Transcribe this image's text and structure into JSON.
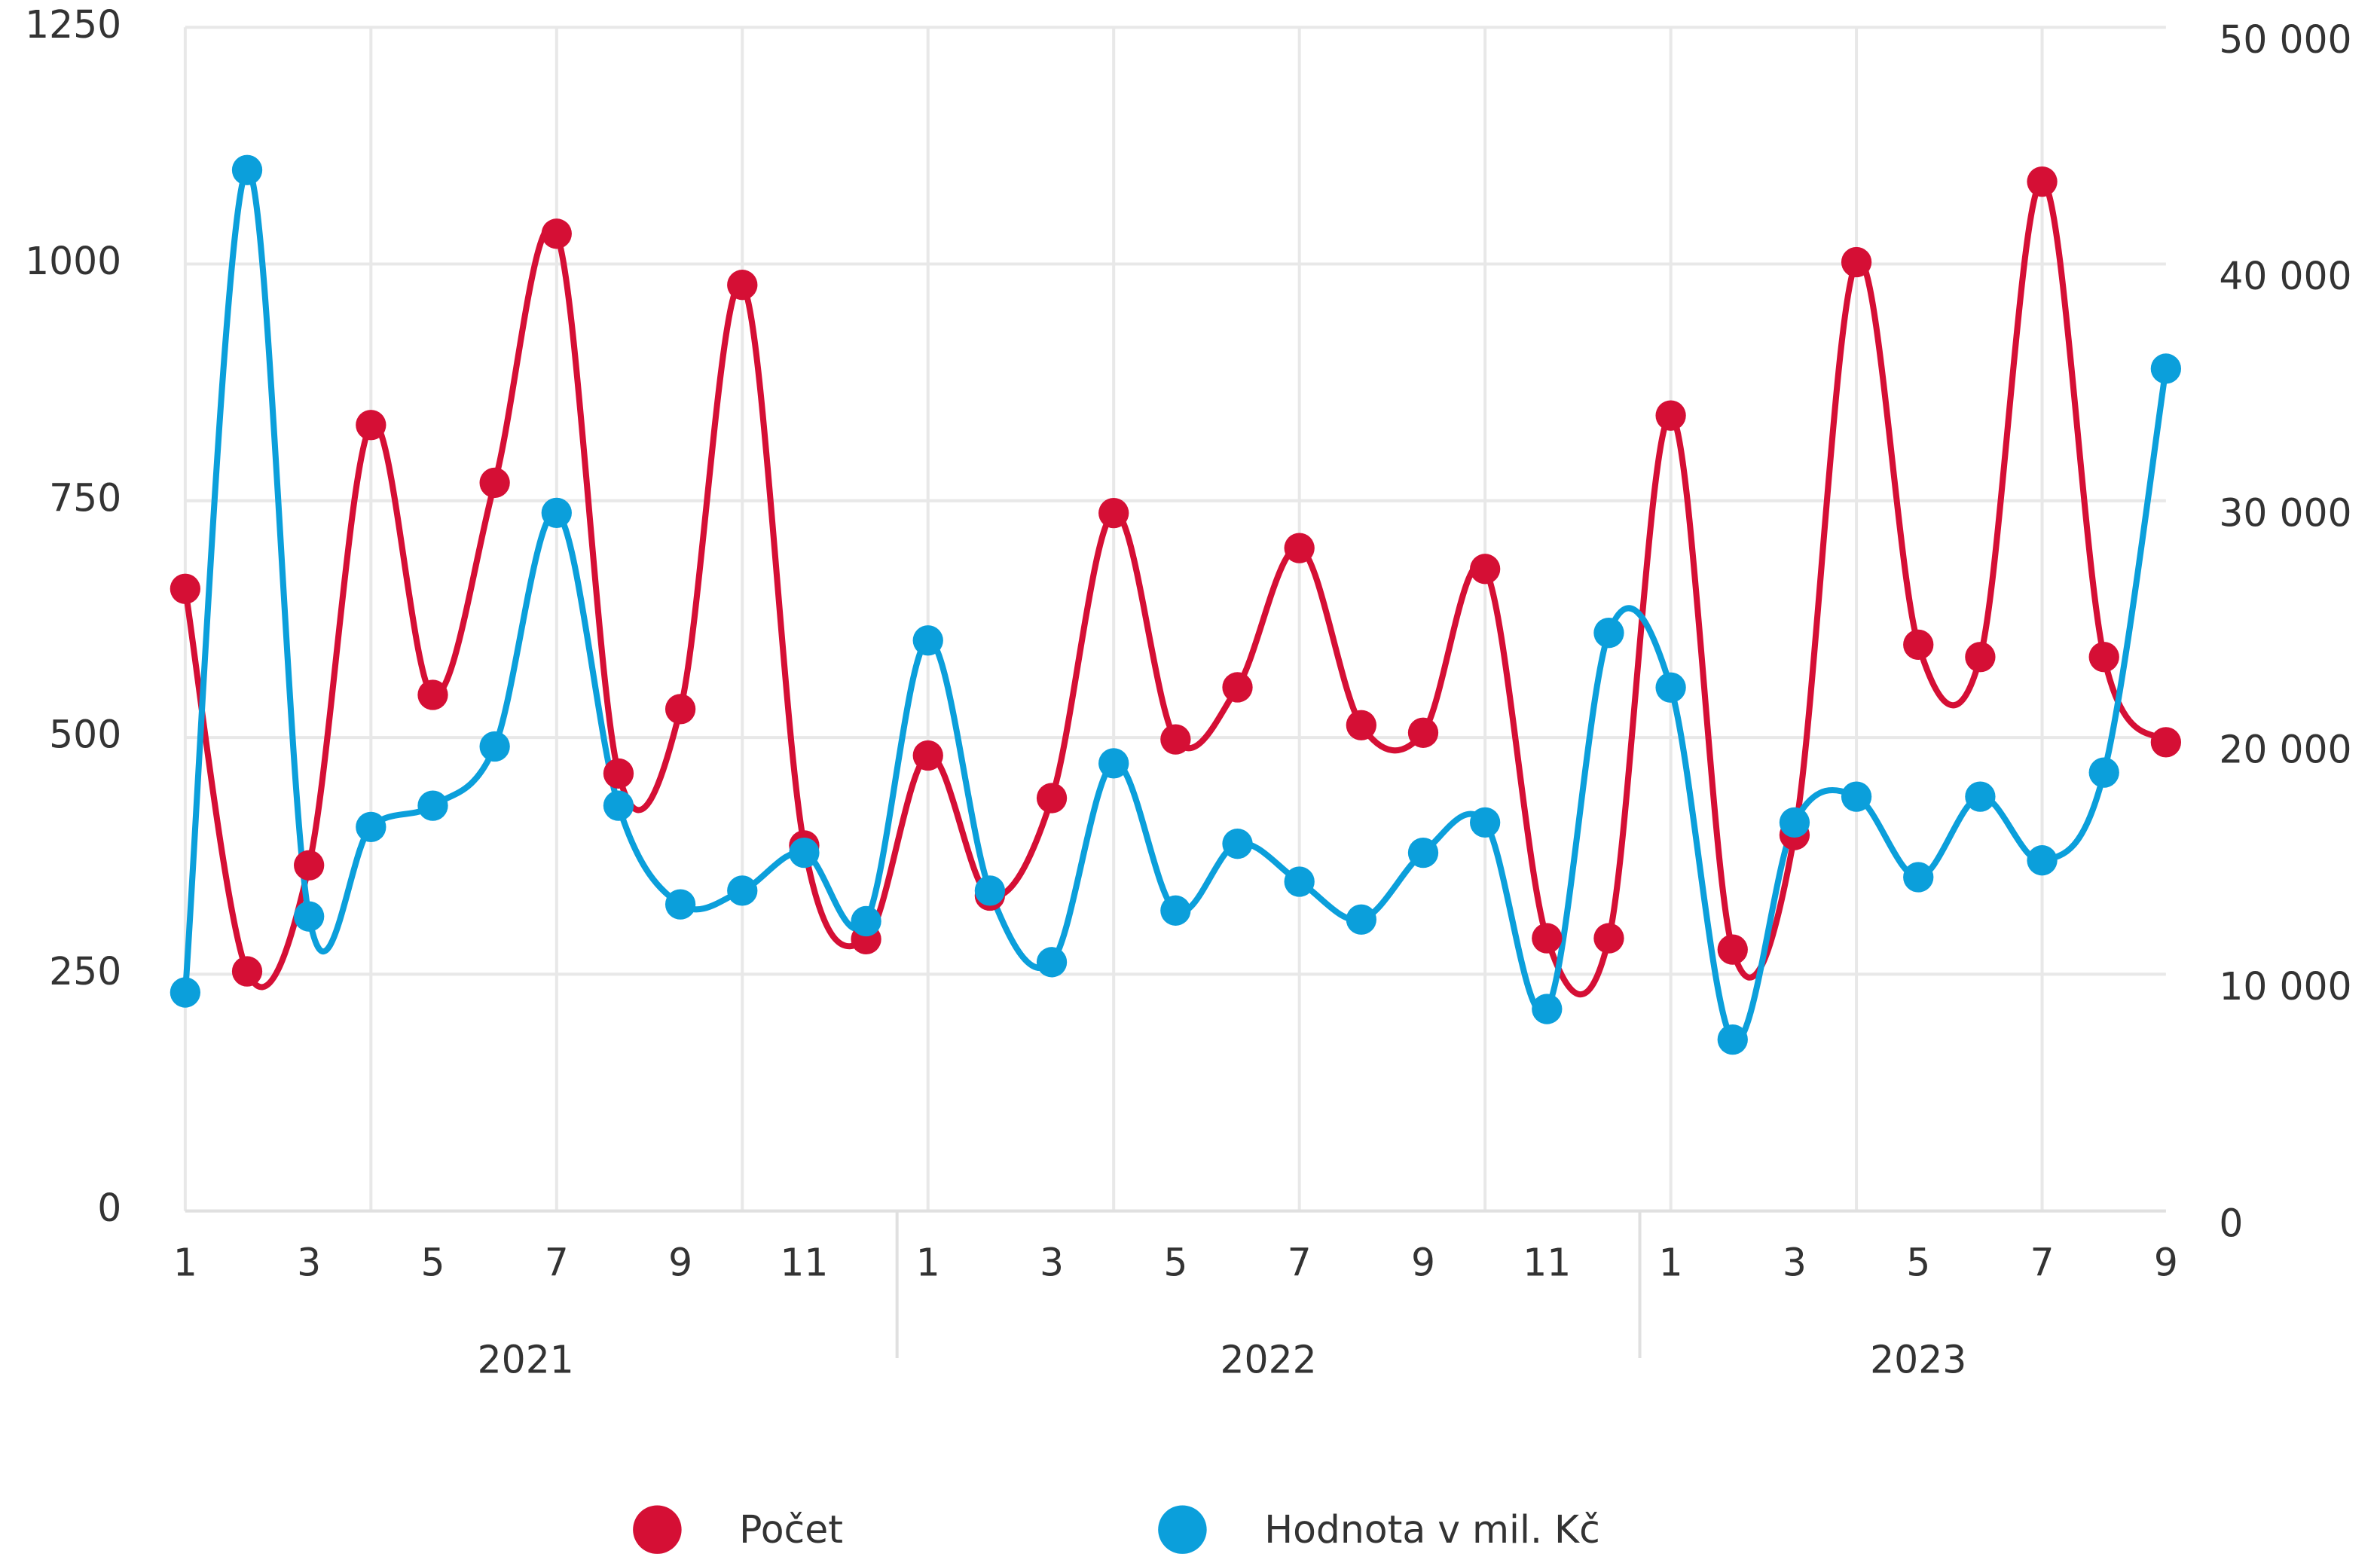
{
  "chart_data": {
    "type": "line",
    "categories": [
      "1",
      null,
      "3",
      null,
      "5",
      null,
      "7",
      null,
      "9",
      null,
      "11",
      null,
      "1",
      null,
      "3",
      null,
      "5",
      null,
      "7",
      null,
      "9",
      null,
      "11",
      null,
      "1",
      null,
      "3",
      null,
      "5",
      null,
      "7",
      null,
      "9"
    ],
    "years": [
      "2021",
      "2022",
      "2023"
    ],
    "series": [
      {
        "name": "Počet",
        "color": "#d50f35",
        "axis": "y",
        "values": [
          657,
          253,
          365,
          830,
          545,
          769,
          1032,
          462,
          530,
          978,
          386,
          287,
          481,
          333,
          436,
          737,
          498,
          553,
          700,
          513,
          505,
          678,
          288,
          288,
          840,
          276,
          397,
          1002,
          598,
          585,
          1087,
          585,
          495
        ]
      },
      {
        "name": "Hodnota v mil. Kč",
        "color": "#0b9fdb",
        "axis": "y2",
        "values": [
          9230,
          43970,
          12440,
          16220,
          17120,
          19620,
          29490,
          17120,
          12950,
          13530,
          15130,
          12240,
          24100,
          13530,
          10510,
          18910,
          12690,
          15510,
          13910,
          12310,
          15130,
          16410,
          8530,
          24420,
          22110,
          7240,
          16410,
          17500,
          14100,
          17500,
          14810,
          18520,
          35580
        ]
      }
    ],
    "ylim": [
      0,
      1250
    ],
    "yticks": [
      0,
      250,
      500,
      750,
      1000,
      1250
    ],
    "y2lim": [
      0,
      50000
    ],
    "y2ticks": [
      0,
      {
        "value": 10000,
        "label": "10 000"
      },
      {
        "value": 20000,
        "label": "20 000"
      },
      {
        "value": 30000,
        "label": "30 000"
      },
      {
        "value": 40000,
        "label": "40 000"
      },
      {
        "value": 50000,
        "label": "50 000"
      }
    ],
    "grid": true,
    "legend": "bottom"
  }
}
